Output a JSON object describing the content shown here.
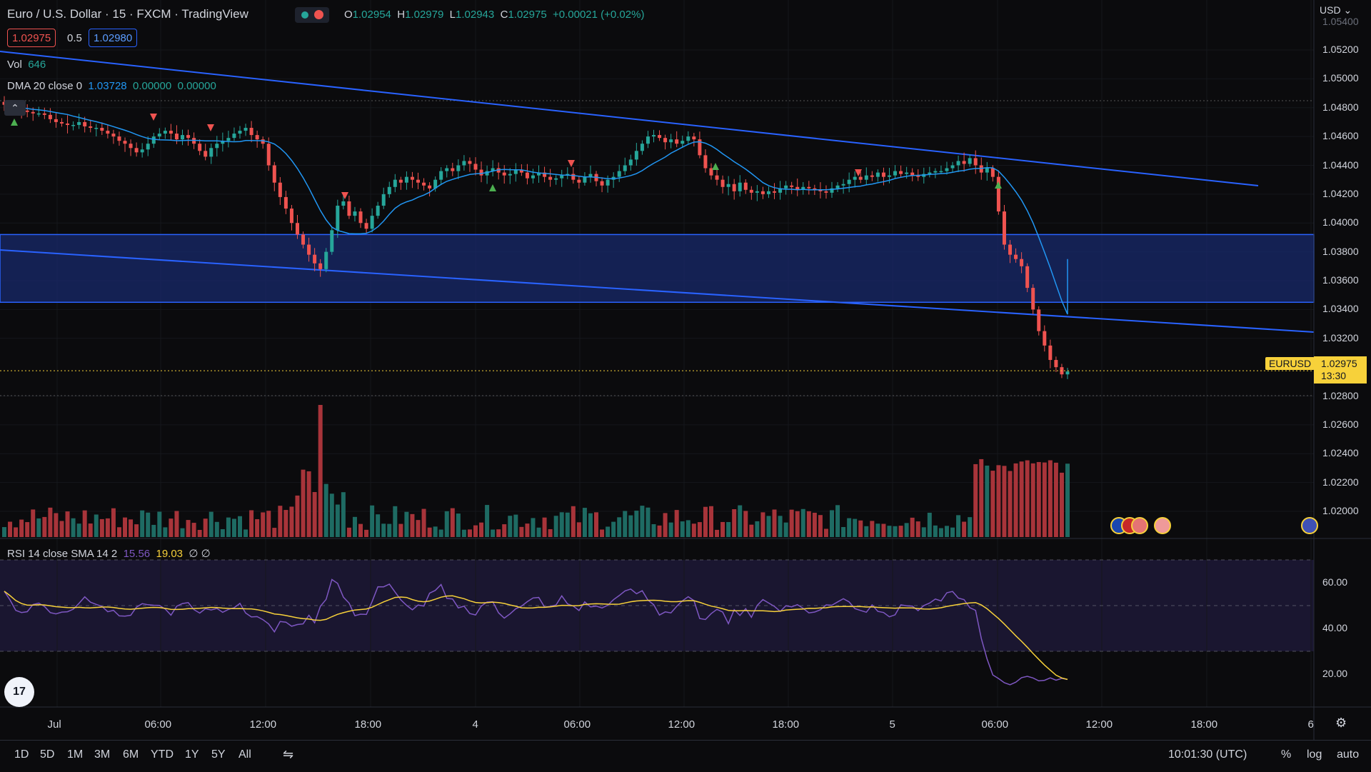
{
  "header": {
    "symbol": "Euro / U.S. Dollar · 15 · FXCM · TradingView",
    "ohlc": {
      "o_label": "O",
      "o": "1.02954",
      "h_label": "H",
      "h": "1.02979",
      "l_label": "L",
      "l": "1.02943",
      "c_label": "C",
      "c": "1.02975",
      "change": "+0.00021 (+0.02%)"
    },
    "sell_price": "1.02975",
    "spread": "0.5",
    "buy_price": "1.02980"
  },
  "indicators": {
    "vol_label": "Vol",
    "vol_value": "646",
    "dma_label": "DMA 20 close 0",
    "dma_v1": "1.03728",
    "dma_v2": "0.00000",
    "dma_v3": "0.00000",
    "rsi_label": "RSI 14 close SMA 14 2",
    "rsi_v1": "15.56",
    "rsi_v2": "19.03",
    "rsi_v3": "∅ ∅"
  },
  "price_axis": {
    "currency": "USD",
    "labels": [
      "1.05200",
      "1.05000",
      "1.04800",
      "1.04600",
      "1.04400",
      "1.04200",
      "1.04000",
      "1.03800",
      "1.03600",
      "1.03400",
      "1.03200",
      "1.02800",
      "1.02600",
      "1.02400",
      "1.02200",
      "1.02000"
    ],
    "top_cut": "1.05400",
    "current_symbol": "EURUSD",
    "current_price": "1.02975",
    "countdown": "13:30"
  },
  "rsi_axis": {
    "labels": [
      "60.00",
      "40.00",
      "20.00"
    ]
  },
  "time_axis": {
    "labels": [
      "Jul",
      "06:00",
      "12:00",
      "18:00",
      "4",
      "06:00",
      "12:00",
      "18:00",
      "5",
      "06:00",
      "12:00",
      "18:00",
      "6"
    ]
  },
  "bottom_bar": {
    "timeframes": [
      "1D",
      "5D",
      "1M",
      "3M",
      "6M",
      "YTD",
      "1Y",
      "5Y",
      "All"
    ],
    "clock": "10:01:30 (UTC)",
    "percent": "%",
    "log": "log",
    "auto": "auto"
  },
  "logo": "17",
  "colors": {
    "up": "#26a69a",
    "down": "#ef5350",
    "zone": "#1c2c66",
    "line": "#2962ff",
    "ma": "#2196f3",
    "rsi": "#7e57c2",
    "rsi_ma": "#f7d13a",
    "price_tag": "#f7d13a"
  },
  "chart_data": {
    "type": "candlestick",
    "symbol": "EURUSD",
    "interval": "15",
    "ylim": [
      1.0185,
      1.0545
    ],
    "time_range": [
      "Jul 1",
      "Jul 6"
    ],
    "candles_close": [
      1.0482,
      1.0481,
      1.0479,
      1.0478,
      1.0477,
      1.0476,
      1.0476,
      1.0475,
      1.0472,
      1.047,
      1.0469,
      1.0468,
      1.0468,
      1.047,
      1.0467,
      1.0466,
      1.0466,
      1.0464,
      1.0462,
      1.046,
      1.0457,
      1.0455,
      1.0452,
      1.0449,
      1.0451,
      1.0455,
      1.046,
      1.0462,
      1.0464,
      1.0462,
      1.0458,
      1.0461,
      1.0459,
      1.0455,
      1.045,
      1.0446,
      1.0452,
      1.0455,
      1.0457,
      1.0459,
      1.0462,
      1.0464,
      1.0466,
      1.0461,
      1.0458,
      1.0455,
      1.044,
      1.0428,
      1.0418,
      1.041,
      1.04,
      1.0392,
      1.0385,
      1.0378,
      1.0372,
      1.0368,
      1.038,
      1.0395,
      1.0412,
      1.0415,
      1.0405,
      1.0408,
      1.04,
      1.0396,
      1.0405,
      1.0412,
      1.042,
      1.0425,
      1.043,
      1.0428,
      1.0432,
      1.043,
      1.0428,
      1.0426,
      1.0424,
      1.043,
      1.0436,
      1.0438,
      1.0436,
      1.044,
      1.0443,
      1.0441,
      1.0437,
      1.0433,
      1.0436,
      1.0438,
      1.0435,
      1.0433,
      1.0434,
      1.0437,
      1.0435,
      1.0431,
      1.0433,
      1.0435,
      1.0432,
      1.043,
      1.0431,
      1.0433,
      1.0434,
      1.043,
      1.0428,
      1.0432,
      1.0434,
      1.0429,
      1.0426,
      1.043,
      1.0432,
      1.0436,
      1.044,
      1.0444,
      1.045,
      1.0455,
      1.046,
      1.0461,
      1.0459,
      1.0456,
      1.0458,
      1.0455,
      1.0457,
      1.046,
      1.0458,
      1.0447,
      1.0438,
      1.0433,
      1.043,
      1.0425,
      1.0427,
      1.0422,
      1.0428,
      1.0423,
      1.0421,
      1.0422,
      1.042,
      1.0422,
      1.0421,
      1.0424,
      1.0426,
      1.0425,
      1.0423,
      1.0425,
      1.0424,
      1.0423,
      1.0422,
      1.0421,
      1.0424,
      1.0426,
      1.0427,
      1.043,
      1.0432,
      1.043,
      1.0433,
      1.0432,
      1.0435,
      1.0432,
      1.0433,
      1.0436,
      1.0434,
      1.0435,
      1.0433,
      1.0432,
      1.0434,
      1.0435,
      1.0436,
      1.0436,
      1.0438,
      1.044,
      1.0443,
      1.0441,
      1.0445,
      1.044,
      1.0435,
      1.0438,
      1.0432,
      1.0408,
      1.0385,
      1.0378,
      1.0375,
      1.037,
      1.0355,
      1.034,
      1.0325,
      1.0315,
      1.0305,
      1.03,
      1.0295,
      1.0297
    ],
    "dma_20": {
      "last": 1.03728
    },
    "rsi": {
      "last": 15.56,
      "ma_last": 19.03,
      "levels": [
        70,
        50,
        30
      ]
    },
    "zone": [
      1.0345,
      1.0392
    ]
  }
}
